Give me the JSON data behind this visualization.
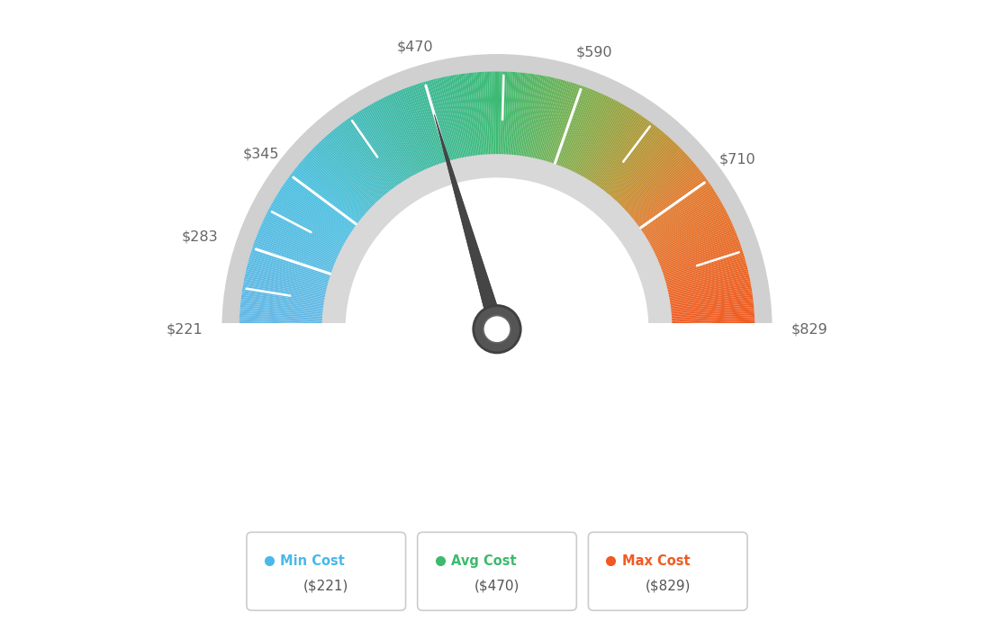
{
  "min_value": 221,
  "avg_value": 470,
  "max_value": 829,
  "tick_labels": [
    "$221",
    "$283",
    "$345",
    "$470",
    "$590",
    "$710",
    "$829"
  ],
  "tick_values": [
    221,
    283,
    345,
    470,
    590,
    710,
    829
  ],
  "legend": [
    {
      "label": "Min Cost",
      "value": "($221)",
      "color": "#4ab8e8"
    },
    {
      "label": "Avg Cost",
      "value": "($470)",
      "color": "#3dba6e"
    },
    {
      "label": "Max Cost",
      "value": "($829)",
      "color": "#f05a22"
    }
  ],
  "background_color": "#ffffff",
  "needle_value": 470,
  "color_stops": [
    [
      0.0,
      [
        0.4,
        0.72,
        0.9
      ]
    ],
    [
      0.2,
      [
        0.3,
        0.75,
        0.88
      ]
    ],
    [
      0.38,
      [
        0.24,
        0.72,
        0.62
      ]
    ],
    [
      0.5,
      [
        0.24,
        0.73,
        0.45
      ]
    ],
    [
      0.62,
      [
        0.5,
        0.68,
        0.3
      ]
    ],
    [
      0.72,
      [
        0.72,
        0.58,
        0.2
      ]
    ],
    [
      0.8,
      [
        0.88,
        0.48,
        0.18
      ]
    ],
    [
      1.0,
      [
        0.94,
        0.35,
        0.13
      ]
    ]
  ]
}
